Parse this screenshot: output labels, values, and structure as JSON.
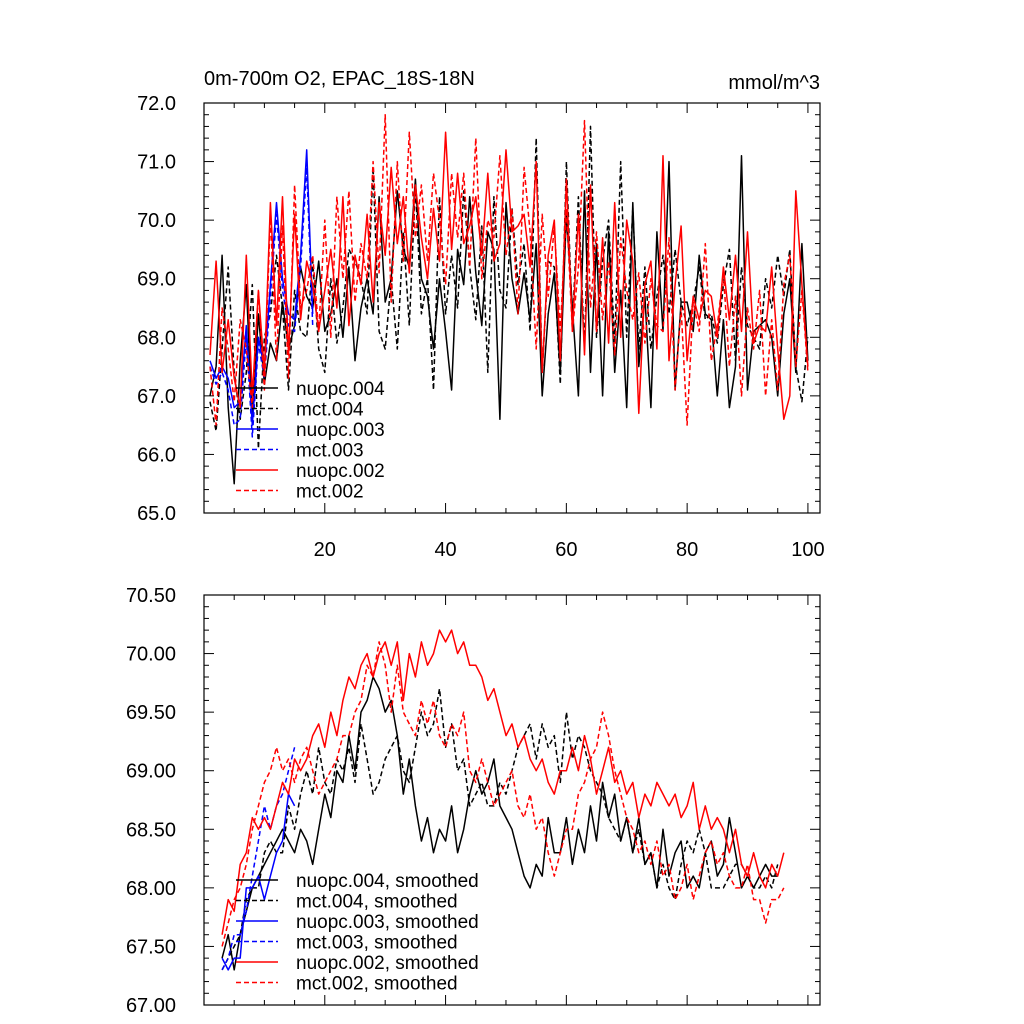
{
  "chart_data": [
    {
      "type": "line",
      "title": "0m-700m O2, EPAC_18S-18N",
      "units_label": "mmol/m^3",
      "xlim": [
        0,
        102
      ],
      "ylim": [
        65.0,
        72.0
      ],
      "xticks": [
        20,
        40,
        60,
        80,
        100
      ],
      "xtick_labels": [
        "20",
        "40",
        "60",
        "80",
        "100"
      ],
      "yticks": [
        65.0,
        66.0,
        67.0,
        68.0,
        69.0,
        70.0,
        71.0,
        72.0
      ],
      "ytick_labels": [
        "65.0",
        "66.0",
        "67.0",
        "68.0",
        "69.0",
        "70.0",
        "71.0",
        "72.0"
      ],
      "legend_position": "lower-left",
      "series": [
        {
          "name": "nuopc.004",
          "color": "#000000",
          "dash": "solid",
          "x_start": 1,
          "values": [
            67.0,
            67.5,
            69.4,
            66.8,
            65.5,
            67.6,
            68.9,
            66.6,
            68.4,
            67.2,
            67.9,
            67.6,
            68.6,
            67.8,
            68.2,
            69.2,
            68.7,
            68.5,
            69.3,
            68.1,
            68.4,
            69.0,
            68.0,
            69.2,
            67.6,
            68.5,
            69.0,
            68.4,
            70.4,
            68.6,
            69.0,
            70.5,
            69.5,
            69.2,
            70.7,
            69.0,
            68.7,
            67.8,
            69.0,
            68.1,
            67.1,
            69.5,
            68.9,
            70.4,
            69.1,
            68.2,
            69.8,
            69.5,
            66.6,
            70.3,
            69.0,
            68.4,
            69.1,
            68.3,
            69.6,
            67.0,
            68.4,
            69.1,
            67.4,
            70.1,
            68.5,
            67.0,
            70.5,
            67.4,
            69.6,
            67.0,
            69.8,
            67.4,
            68.8,
            66.8,
            70.3,
            67.5,
            68.7,
            66.8,
            69.8,
            68.1,
            71.0,
            67.1,
            68.6,
            68.6,
            68.1,
            69.4,
            68.4,
            68.3,
            67.0,
            68.3,
            66.8,
            67.5,
            71.1,
            67.1,
            68.1,
            68.2,
            68.3,
            68.0,
            67.0,
            68.4,
            69.0,
            67.4,
            69.6,
            67.6
          ]
        },
        {
          "name": "mct.004",
          "color": "#000000",
          "dash": "dashed",
          "x_start": 1,
          "values": [
            66.9,
            66.4,
            67.8,
            69.2,
            67.4,
            66.6,
            67.4,
            68.9,
            66.1,
            68.0,
            68.4,
            69.4,
            68.5,
            67.1,
            68.8,
            68.1,
            68.0,
            69.3,
            67.8,
            67.4,
            69.0,
            67.9,
            68.5,
            69.5,
            69.3,
            69.0,
            68.4,
            70.9,
            68.1,
            67.8,
            69.0,
            67.8,
            69.8,
            68.2,
            70.6,
            68.4,
            69.0,
            67.1,
            70.4,
            68.4,
            69.4,
            68.5,
            70.5,
            69.2,
            68.3,
            69.9,
            67.4,
            70.4,
            68.8,
            68.5,
            70.2,
            68.9,
            69.6,
            68.1,
            71.4,
            67.4,
            69.3,
            69.2,
            67.2,
            71.0,
            68.2,
            70.4,
            67.8,
            71.6,
            68.0,
            69.3,
            70.0,
            67.9,
            71.0,
            68.0,
            70.2,
            67.8,
            69.2,
            67.8,
            68.7,
            69.4,
            68.4,
            69.5,
            68.6,
            68.2,
            68.6,
            69.2,
            68.3,
            68.4,
            67.9,
            68.9,
            69.5,
            67.6,
            69.2,
            68.2,
            68.0,
            67.8,
            69.0,
            68.5,
            69.4,
            68.7,
            69.5,
            67.5,
            66.9,
            68.0
          ]
        },
        {
          "name": "nuopc.003",
          "color": "#0000ff",
          "dash": "solid",
          "x_start": 1,
          "values": [
            67.6,
            67.3,
            67.5,
            67.3,
            66.8,
            66.9,
            68.2,
            66.5,
            68.0,
            67.5,
            68.9,
            70.3,
            69.0,
            68.4,
            68.3,
            69.4,
            71.2,
            68.4
          ]
        },
        {
          "name": "mct.003",
          "color": "#0000ff",
          "dash": "dashed",
          "x_start": 1,
          "values": [
            67.5,
            67.2,
            67.4,
            67.1,
            66.5,
            66.6,
            68.0,
            66.3,
            67.9,
            67.3,
            68.7,
            70.1,
            68.8,
            68.2,
            68.1,
            69.2,
            70.9,
            68.2
          ]
        },
        {
          "name": "nuopc.002",
          "color": "#ff0000",
          "dash": "solid",
          "x_start": 1,
          "values": [
            67.7,
            69.3,
            67.4,
            68.3,
            67.3,
            66.8,
            69.4,
            67.0,
            68.8,
            67.4,
            70.3,
            68.2,
            70.4,
            67.7,
            70.1,
            68.3,
            69.3,
            68.9,
            68.1,
            68.8,
            69.5,
            68.5,
            70.4,
            68.2,
            69.4,
            68.9,
            70.1,
            68.6,
            70.3,
            69.4,
            70.9,
            69.6,
            70.4,
            69.1,
            70.6,
            69.7,
            69.0,
            70.2,
            69.3,
            71.5,
            69.5,
            70.8,
            69.6,
            69.9,
            70.4,
            69.4,
            70.8,
            69.3,
            69.6,
            71.2,
            69.8,
            69.9,
            70.1,
            69.2,
            71.0,
            67.4,
            69.4,
            70.0,
            67.6,
            70.7,
            68.1,
            70.1,
            67.7,
            70.6,
            68.1,
            69.7,
            67.9,
            70.3,
            68.0,
            70.0,
            69.3,
            66.7,
            68.9,
            69.3,
            67.8,
            71.1,
            67.6,
            68.9,
            69.9,
            67.6,
            68.7,
            68.3,
            68.8,
            68.7,
            68.0,
            69.2,
            68.3,
            69.4,
            68.1,
            69.8,
            67.9,
            68.2,
            68.1,
            69.2,
            67.8,
            66.6,
            67.0,
            70.5,
            68.9,
            67.5
          ]
        },
        {
          "name": "mct.002",
          "color": "#ff0000",
          "dash": "dashed",
          "x_start": 1,
          "values": [
            67.5,
            66.5,
            68.5,
            67.8,
            66.9,
            68.3,
            67.8,
            66.8,
            68.8,
            67.1,
            70.1,
            67.6,
            69.9,
            67.3,
            70.6,
            68.5,
            68.8,
            69.4,
            68.1,
            70.0,
            68.0,
            70.4,
            69.0,
            70.5,
            68.6,
            69.6,
            69.0,
            71.0,
            69.1,
            71.8,
            68.6,
            71.0,
            69.3,
            71.5,
            69.7,
            70.6,
            69.3,
            70.8,
            70.0,
            68.9,
            70.8,
            69.7,
            70.8,
            69.2,
            71.4,
            69.0,
            70.0,
            69.7,
            71.1,
            69.4,
            70.2,
            68.4,
            70.9,
            69.8,
            67.8,
            70.1,
            68.7,
            69.9,
            68.1,
            70.2,
            68.1,
            69.2,
            71.7,
            68.5,
            69.8,
            68.3,
            69.3,
            67.7,
            69.7,
            68.8,
            68.3,
            69.1,
            67.9,
            69.0,
            68.2,
            68.1,
            69.7,
            67.1,
            68.5,
            66.5,
            68.6,
            68.1,
            69.6,
            67.6,
            68.2,
            69.1,
            67.5,
            68.7,
            67.0,
            68.5,
            67.8,
            68.8,
            67.0,
            68.3,
            67.1,
            68.9,
            69.4,
            67.5,
            68.8,
            67.4
          ]
        }
      ]
    },
    {
      "type": "line",
      "title": "",
      "xlim": [
        0,
        102
      ],
      "ylim": [
        67.0,
        70.5
      ],
      "yticks": [
        67.0,
        67.5,
        68.0,
        68.5,
        69.0,
        69.5,
        70.0,
        70.5
      ],
      "ytick_labels": [
        "67.00",
        "67.50",
        "68.00",
        "68.50",
        "69.00",
        "69.50",
        "70.00",
        "70.50"
      ],
      "legend_position": "lower-left",
      "series": [
        {
          "name": "nuopc.004, smoothed",
          "color": "#000000",
          "dash": "solid",
          "x_start": 3,
          "values": [
            67.4,
            67.6,
            67.3,
            67.6,
            67.8,
            68.0,
            68.1,
            68.2,
            68.3,
            68.4,
            68.5,
            68.4,
            68.3,
            68.5,
            68.4,
            68.2,
            68.5,
            68.8,
            68.6,
            69.0,
            68.9,
            69.3,
            69.0,
            69.5,
            69.6,
            69.8,
            69.7,
            69.5,
            69.6,
            69.3,
            68.8,
            69.1,
            68.7,
            68.4,
            68.6,
            68.3,
            68.5,
            68.4,
            68.7,
            68.3,
            68.5,
            68.8,
            69.0,
            68.8,
            68.9,
            69.1,
            68.7,
            68.6,
            68.5,
            68.3,
            68.1,
            68.0,
            68.2,
            68.1,
            68.6,
            68.3,
            68.3,
            68.6,
            68.2,
            68.5,
            68.3,
            68.7,
            68.4,
            68.9,
            68.6,
            68.8,
            68.4,
            68.6,
            68.3,
            68.6,
            68.2,
            68.3,
            68.0,
            68.5,
            68.1,
            68.3,
            68.4,
            68.0,
            68.1,
            68.0,
            68.3,
            68.4,
            68.1,
            68.2,
            68.6,
            68.3,
            68.0,
            68.1,
            68.0,
            68.1,
            68.2,
            68.1,
            68.1
          ]
        },
        {
          "name": "mct.004, smoothed",
          "color": "#000000",
          "dash": "dashed",
          "x_start": 3,
          "values": [
            67.3,
            67.4,
            67.5,
            67.6,
            67.9,
            68.0,
            68.0,
            68.3,
            68.4,
            68.3,
            68.3,
            68.7,
            68.5,
            68.8,
            69.0,
            68.8,
            69.2,
            68.9,
            68.8,
            69.1,
            69.0,
            69.2,
            68.9,
            69.4,
            69.1,
            68.8,
            68.9,
            69.1,
            69.2,
            69.3,
            69.0,
            68.9,
            69.2,
            69.5,
            69.3,
            69.4,
            69.7,
            69.2,
            69.4,
            69.0,
            69.1,
            68.7,
            68.8,
            68.9,
            68.7,
            68.7,
            68.9,
            68.8,
            69.0,
            69.2,
            69.3,
            69.4,
            69.1,
            69.4,
            69.2,
            69.3,
            68.9,
            69.5,
            69.1,
            69.3,
            69.2,
            69.0,
            68.9,
            68.8,
            68.6,
            68.5,
            68.4,
            68.6,
            68.3,
            68.5,
            68.2,
            68.3,
            68.0,
            68.2,
            68.0,
            67.9,
            68.2,
            68.4,
            68.3,
            68.5,
            68.3,
            68.0,
            68.0,
            68.0,
            68.1,
            68.2,
            68.2,
            68.1,
            68.0,
            68.0,
            68.1,
            68.0,
            68.2
          ]
        },
        {
          "name": "nuopc.003, smoothed",
          "color": "#0000ff",
          "dash": "solid",
          "x_start": 3,
          "values": [
            67.4,
            67.3,
            67.4,
            67.4,
            68.0,
            68.0,
            68.1,
            67.9,
            68.1,
            68.3,
            68.4,
            68.8,
            68.7
          ]
        },
        {
          "name": "mct.003, smoothed",
          "color": "#0000ff",
          "dash": "dashed",
          "x_start": 3,
          "values": [
            67.3,
            67.4,
            67.6,
            67.6,
            67.8,
            68.1,
            68.4,
            68.7,
            68.5,
            68.7,
            68.8,
            69.0,
            69.2
          ]
        },
        {
          "name": "nuopc.002, smoothed",
          "color": "#ff0000",
          "dash": "solid",
          "x_start": 3,
          "values": [
            67.6,
            67.9,
            67.8,
            68.2,
            68.3,
            68.6,
            68.5,
            68.6,
            68.5,
            68.7,
            68.9,
            68.8,
            69.1,
            69.0,
            69.1,
            69.3,
            69.4,
            69.2,
            69.5,
            69.3,
            69.6,
            69.8,
            69.7,
            69.9,
            70.0,
            69.8,
            70.0,
            70.1,
            69.9,
            70.1,
            69.6,
            70.0,
            69.8,
            70.1,
            69.9,
            70.0,
            70.2,
            70.1,
            70.2,
            70.0,
            70.1,
            69.9,
            69.9,
            69.8,
            69.6,
            69.7,
            69.5,
            69.3,
            69.4,
            69.2,
            69.3,
            69.1,
            69.0,
            69.1,
            68.9,
            68.8,
            69.0,
            69.0,
            69.2,
            69.0,
            69.3,
            69.1,
            68.8,
            69.0,
            69.2,
            68.9,
            69.0,
            68.8,
            68.9,
            68.6,
            68.8,
            68.7,
            68.9,
            68.8,
            68.7,
            68.8,
            68.6,
            68.7,
            68.9,
            68.5,
            68.7,
            68.5,
            68.6,
            68.5,
            68.3,
            68.5,
            68.2,
            68.1,
            68.3,
            68.1,
            68.0,
            68.2,
            68.1,
            68.3
          ]
        },
        {
          "name": "mct.002, smoothed",
          "color": "#ff0000",
          "dash": "dashed",
          "x_start": 3,
          "values": [
            67.5,
            67.7,
            67.9,
            68.0,
            68.2,
            68.5,
            68.7,
            68.9,
            69.0,
            69.2,
            69.0,
            69.1,
            68.9,
            69.1,
            69.2,
            69.0,
            68.8,
            68.9,
            69.0,
            69.1,
            69.3,
            69.3,
            69.5,
            69.6,
            69.9,
            69.8,
            70.1,
            69.9,
            69.5,
            69.9,
            69.5,
            69.4,
            69.3,
            69.6,
            69.4,
            69.6,
            69.3,
            69.2,
            69.4,
            69.3,
            69.5,
            69.0,
            68.9,
            69.1,
            68.9,
            68.7,
            68.8,
            68.9,
            69.0,
            68.7,
            68.6,
            68.8,
            68.5,
            68.6,
            68.3,
            68.1,
            68.3,
            68.5,
            68.5,
            68.8,
            68.9,
            69.1,
            69.2,
            69.5,
            69.3,
            69.0,
            68.8,
            68.6,
            68.5,
            68.3,
            68.4,
            68.2,
            68.4,
            68.1,
            68.2,
            67.9,
            68.0,
            68.2,
            67.9,
            68.1,
            68.3,
            68.4,
            68.2,
            68.3,
            68.1,
            68.0,
            68.0,
            68.2,
            67.9,
            67.9,
            67.7,
            67.9,
            67.9,
            68.0
          ]
        }
      ]
    }
  ]
}
